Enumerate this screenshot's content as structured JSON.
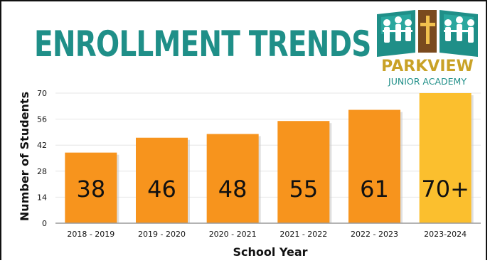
{
  "logo": {
    "name": "PARKVIEW",
    "subtitle": "JUNIOR ACADEMY",
    "colors": {
      "teal": "#1f8f88",
      "gold": "#c9a227"
    }
  },
  "colors": {
    "bar": "#f7941d",
    "bar_highlight": "#fbbf2e",
    "title": "#1f8f88",
    "grid": "#e6e6e6"
  },
  "chart_data": {
    "type": "bar",
    "title": "ENROLLMENT TRENDS",
    "xlabel": "School Year",
    "ylabel": "Number of Students",
    "categories": [
      "2018 - 2019",
      "2019 - 2020",
      "2020 - 2021",
      "2021 - 2022",
      "2022 - 2023",
      "2023-2024"
    ],
    "values": [
      38,
      46,
      48,
      55,
      61,
      70
    ],
    "data_labels": [
      "38",
      "46",
      "48",
      "55",
      "61",
      "70+"
    ],
    "highlight_index": 5,
    "yticks": [
      0,
      14,
      28,
      42,
      56,
      70
    ],
    "ylim": [
      0,
      70
    ],
    "grid": true,
    "legend": "none"
  }
}
